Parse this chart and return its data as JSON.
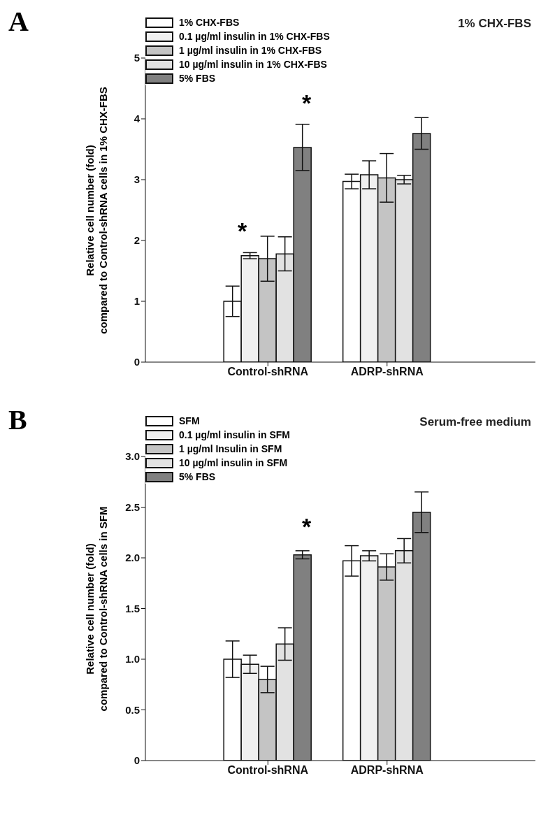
{
  "chart_data": [
    {
      "type": "bar",
      "ylabel": "Relative cell number (fold)\ncompared to Control-shRNA cells in 1% CHX-FBS",
      "categories": [
        "Control-shRNA",
        "ADRP-shRNA"
      ],
      "series": [
        {
          "name": "1% CHX-FBS",
          "color": "#ffffff",
          "values": [
            1.0,
            2.97
          ],
          "errors": [
            0.25,
            0.12
          ]
        },
        {
          "name": "0.1 µg/ml insulin in 1% CHX-FBS",
          "color": "#f0f0f0",
          "values": [
            1.75,
            3.08
          ],
          "errors": [
            0.05,
            0.23
          ]
        },
        {
          "name": "1 µg/ml insulin in 1% CHX-FBS",
          "color": "#c4c4c4",
          "values": [
            1.7,
            3.03
          ],
          "errors": [
            0.37,
            0.4
          ]
        },
        {
          "name": "10 µg/ml insulin in 1% CHX-FBS",
          "color": "#e2e2e2",
          "values": [
            1.78,
            3.0
          ],
          "errors": [
            0.28,
            0.07
          ]
        },
        {
          "name": "5% FBS",
          "color": "#808080",
          "values": [
            3.53,
            3.76
          ],
          "errors": [
            0.38,
            0.26
          ]
        }
      ],
      "ylim": [
        0,
        5
      ],
      "yticks": [
        0,
        1,
        2,
        3,
        4,
        5
      ],
      "legend": "top left",
      "annotations": [
        "A",
        "1% CHX-FBS",
        "*",
        "*"
      ]
    },
    {
      "type": "bar",
      "ylabel": "Relative cell number (fold)\ncompared to Control-shRNA cells in SFM",
      "categories": [
        "Control-shRNA",
        "ADRP-shRNA"
      ],
      "series": [
        {
          "name": "SFM",
          "color": "#ffffff",
          "values": [
            1.0,
            1.97
          ],
          "errors": [
            0.18,
            0.15
          ]
        },
        {
          "name": "0.1 µg/ml insulin in SFM",
          "color": "#f0f0f0",
          "values": [
            0.95,
            2.02
          ],
          "errors": [
            0.09,
            0.05
          ]
        },
        {
          "name": "1 µg/ml Insulin in SFM",
          "color": "#c4c4c4",
          "values": [
            0.8,
            1.91
          ],
          "errors": [
            0.13,
            0.13
          ]
        },
        {
          "name": "10 µg/ml insulin in SFM",
          "color": "#e2e2e2",
          "values": [
            1.15,
            2.07
          ],
          "errors": [
            0.16,
            0.12
          ]
        },
        {
          "name": "5% FBS",
          "color": "#808080",
          "values": [
            2.03,
            2.45
          ],
          "errors": [
            0.04,
            0.2
          ]
        }
      ],
      "ylim": [
        0,
        3
      ],
      "yticks": [
        0,
        {
          "value": 0.5,
          "label": "0.5"
        },
        {
          "value": 1,
          "label": "1.0"
        },
        {
          "value": 1.5,
          "label": "1.5"
        },
        {
          "value": 2,
          "label": "2.0"
        },
        {
          "value": 2.5,
          "label": "2.5"
        },
        {
          "value": 3,
          "label": "3.0"
        }
      ],
      "legend": "top left",
      "annotations": [
        "B",
        "Serum-free medium",
        "*"
      ]
    }
  ]
}
